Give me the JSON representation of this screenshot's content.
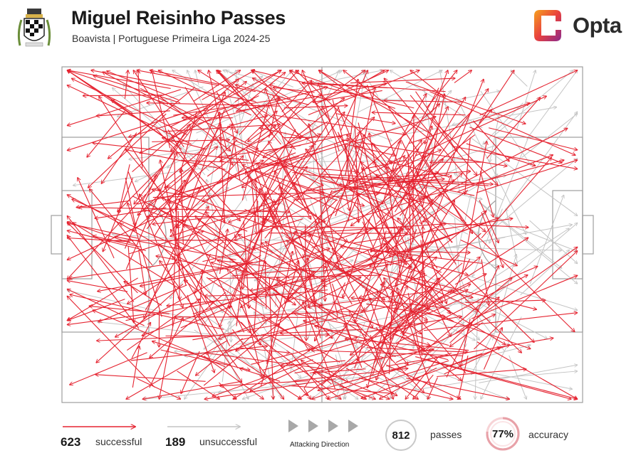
{
  "header": {
    "title": "Miguel Reisinho Passes",
    "subtitle": "Boavista | Portuguese Primeira Liga 2024-25",
    "brand": "Opta"
  },
  "colors": {
    "successful": "#e52330",
    "unsuccessful": "#c4c4c4",
    "pitch_lines": "#9e9e9e",
    "opta_orange": "#f47c20",
    "opta_purple": "#8c2a8c"
  },
  "legend": {
    "successful_count": "623",
    "successful_label": "successful",
    "unsuccessful_count": "189",
    "unsuccessful_label": "unsuccessful",
    "direction_label": "Attacking Direction",
    "passes_count": "812",
    "passes_label": "passes",
    "accuracy_value": "77%",
    "accuracy_label": "accuracy",
    "accuracy_fraction": 0.77
  },
  "chart_data": {
    "type": "pass-map",
    "title": "Miguel Reisinho Passes",
    "subtitle": "Boavista | Portuguese Primeira Liga 2024-25",
    "pitch": {
      "length": 100,
      "width": 100,
      "attacking_direction": "left-to-right"
    },
    "totals": {
      "successful": 623,
      "unsuccessful": 189,
      "passes": 812,
      "accuracy": 0.77
    },
    "series": [
      {
        "name": "successful",
        "color": "#e52330",
        "count": 623
      },
      {
        "name": "unsuccessful",
        "color": "#c4c4c4",
        "count": 189
      }
    ],
    "sample_passes": [
      {
        "x1": 26,
        "y1": 17,
        "x2": 51,
        "y2": 6,
        "outcome": "successful"
      },
      {
        "x1": 20,
        "y1": 14,
        "x2": 5,
        "y2": 36,
        "outcome": "successful"
      },
      {
        "x1": 10,
        "y1": 57,
        "x2": 3,
        "y2": 33,
        "outcome": "successful"
      },
      {
        "x1": 24,
        "y1": 65,
        "x2": 7,
        "y2": 76,
        "outcome": "successful"
      },
      {
        "x1": 27,
        "y1": 58,
        "x2": 48,
        "y2": 50,
        "outcome": "successful"
      },
      {
        "x1": 45,
        "y1": 40,
        "x2": 60,
        "y2": 15,
        "outcome": "successful"
      },
      {
        "x1": 55,
        "y1": 60,
        "x2": 73,
        "y2": 47,
        "outcome": "successful"
      },
      {
        "x1": 62,
        "y1": 30,
        "x2": 70,
        "y2": 8,
        "outcome": "successful"
      },
      {
        "x1": 40,
        "y1": 80,
        "x2": 55,
        "y2": 94,
        "outcome": "successful"
      },
      {
        "x1": 68,
        "y1": 72,
        "x2": 90,
        "y2": 84,
        "outcome": "successful"
      },
      {
        "x1": 35,
        "y1": 30,
        "x2": 22,
        "y2": 48,
        "outcome": "successful"
      },
      {
        "x1": 50,
        "y1": 50,
        "x2": 78,
        "y2": 62,
        "outcome": "successful"
      },
      {
        "x1": 66,
        "y1": 20,
        "x2": 95,
        "y2": 12,
        "outcome": "unsuccessful"
      },
      {
        "x1": 70,
        "y1": 55,
        "x2": 98,
        "y2": 47,
        "outcome": "unsuccessful"
      },
      {
        "x1": 72,
        "y1": 88,
        "x2": 98,
        "y2": 96,
        "outcome": "unsuccessful"
      },
      {
        "x1": 60,
        "y1": 92,
        "x2": 30,
        "y2": 97,
        "outcome": "unsuccessful"
      },
      {
        "x1": 80,
        "y1": 40,
        "x2": 96,
        "y2": 60,
        "outcome": "unsuccessful"
      },
      {
        "x1": 25,
        "y1": 42,
        "x2": 32,
        "y2": 36,
        "outcome": "unsuccessful"
      }
    ]
  }
}
